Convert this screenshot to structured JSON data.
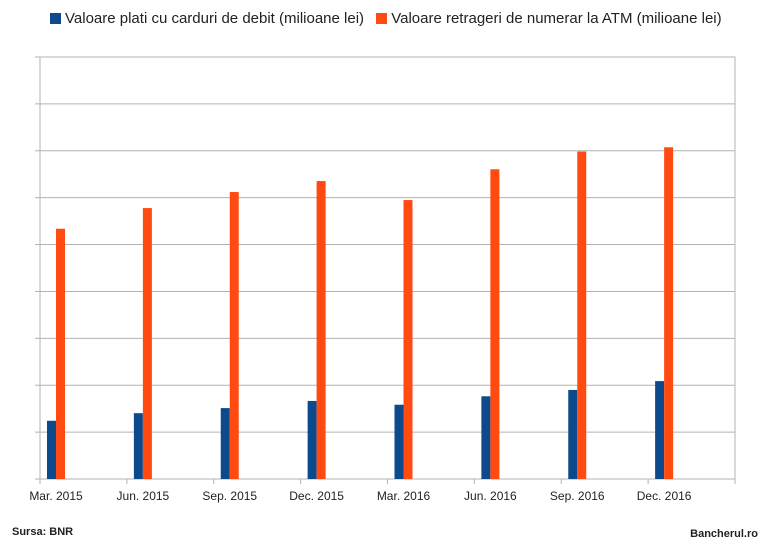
{
  "chart_data": {
    "type": "bar",
    "categories": [
      "Mar. 2015",
      "Jun. 2015",
      "Sep. 2015",
      "Dec. 2015",
      "Mar. 2016",
      "Jun. 2016",
      "Sep. 2016",
      "Dec. 2016"
    ],
    "series": [
      {
        "name": "Valoare plati cu carduri de debit (milioane lei)",
        "color": "#0d4a8c",
        "values": [
          0.138,
          0.156,
          0.168,
          0.185,
          0.176,
          0.196,
          0.211,
          0.232
        ]
      },
      {
        "name": "Valoare  retrageri de numerar la ATM (milioane lei)",
        "color": "#ff4a12",
        "values": [
          0.593,
          0.642,
          0.68,
          0.706,
          0.661,
          0.734,
          0.776,
          0.786
        ]
      }
    ],
    "ylim": [
      0,
      1
    ],
    "grid": true,
    "y_tick_labels_shown": false,
    "legend_position": "top",
    "title": "",
    "xlabel": "",
    "ylabel": ""
  },
  "footer": {
    "source": "Sursa: BNR",
    "brand": "Bancherul.ro"
  }
}
